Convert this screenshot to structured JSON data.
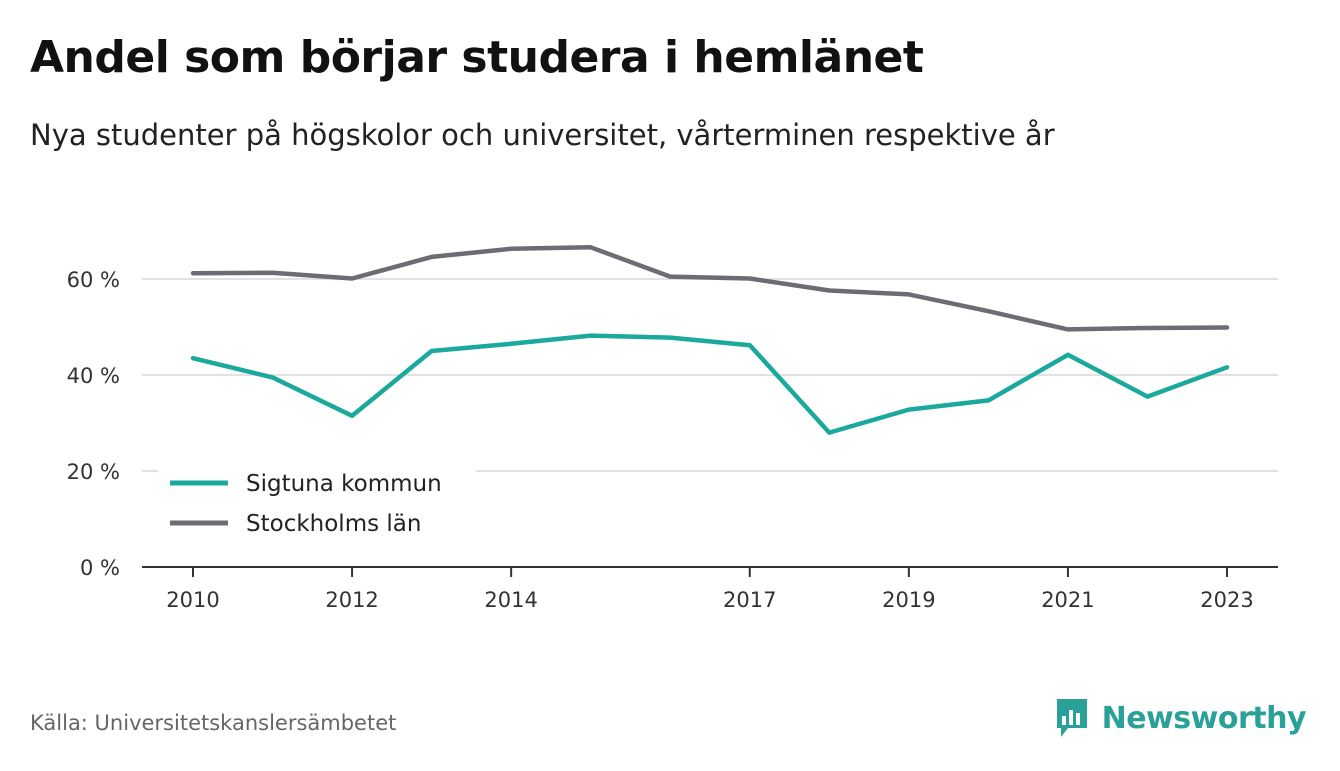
{
  "header": {
    "title": "Andel som börjar studera i hemlänet",
    "subtitle": "Nya studenter på högskolor och universitet, vårterminen respektive år"
  },
  "footer": {
    "source": "Källa: Universitetskanslersämbetet",
    "brand": "Newsworthy",
    "brand_icon": "newsworthy-chart-icon"
  },
  "colors": {
    "sigtuna": "#1aa99c",
    "stockholm": "#6e6c72",
    "grid": "#d9d9d9",
    "axis": "#333333",
    "brand": "#2aa198"
  },
  "chart_data": {
    "type": "line",
    "x": [
      2010,
      2011,
      2012,
      2013,
      2014,
      2015,
      2016,
      2017,
      2018,
      2019,
      2020,
      2021,
      2022,
      2023
    ],
    "x_tick_labels": [
      "2010",
      "2012",
      "2014",
      "2017",
      "2019",
      "2021",
      "2023"
    ],
    "y_tick_labels": [
      "0 %",
      "20 %",
      "40 %",
      "60 %"
    ],
    "y_ticks": [
      0,
      20,
      40,
      60
    ],
    "ylim": [
      0,
      70
    ],
    "grid": true,
    "legend_position": "bottom-left",
    "series": [
      {
        "name": "Sigtuna kommun",
        "color": "#1aa99c",
        "values": [
          43.5,
          39.5,
          31.5,
          45.0,
          46.5,
          48.2,
          47.8,
          46.2,
          28.0,
          32.8,
          34.7,
          44.2,
          35.5,
          41.6
        ]
      },
      {
        "name": "Stockholms län",
        "color": "#6e6c72",
        "values": [
          61.2,
          61.3,
          60.1,
          64.6,
          66.3,
          66.6,
          60.5,
          60.1,
          57.6,
          56.8,
          53.3,
          49.5,
          49.8,
          49.9
        ]
      }
    ]
  }
}
